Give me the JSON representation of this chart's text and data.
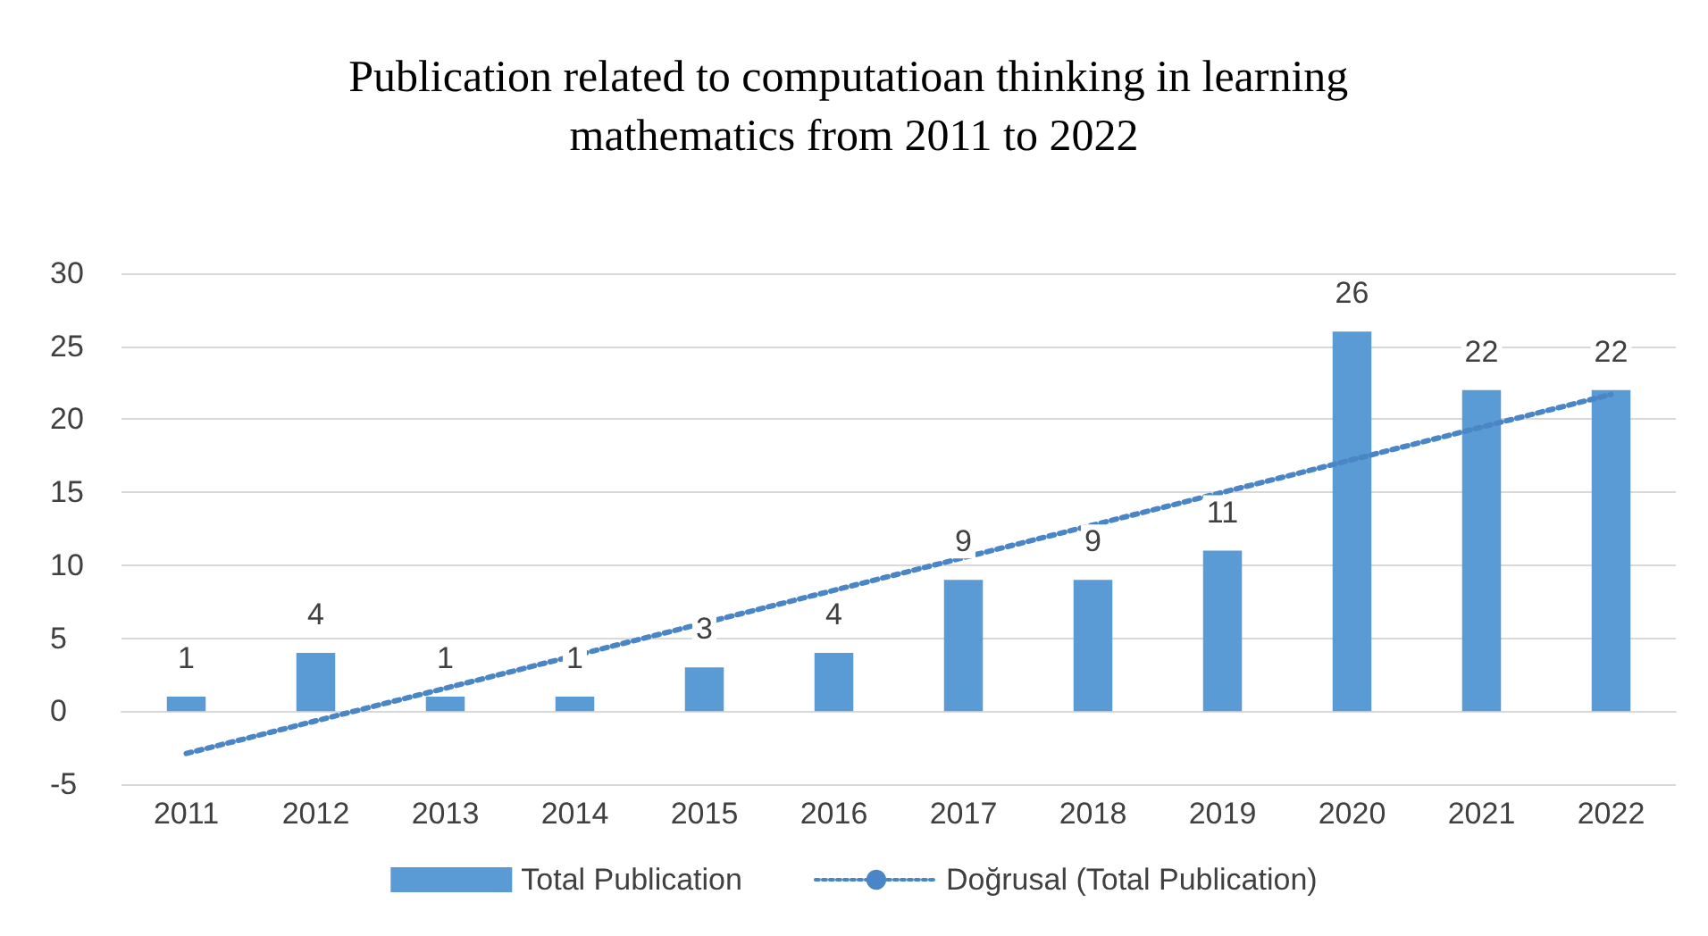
{
  "chart_data": {
    "type": "bar",
    "title": "Publication related to computatioan thinking in learning mathematics from 2011 to 2022",
    "categories": [
      "2011",
      "2012",
      "2013",
      "2014",
      "2015",
      "2016",
      "2017",
      "2018",
      "2019",
      "2020",
      "2021",
      "2022"
    ],
    "series": [
      {
        "name": "Total Publication",
        "color": "#5b9bd5",
        "values": [
          1,
          4,
          1,
          1,
          3,
          4,
          9,
          9,
          11,
          26,
          22,
          22
        ],
        "value_labels": [
          "1",
          "4",
          "1",
          "1",
          "3",
          "4",
          "9",
          "9",
          "11",
          "26",
          "22",
          "22"
        ]
      },
      {
        "name": "Doğrusal (Total Publication)",
        "type": "line",
        "color": "#4a86c5",
        "line_style": "dotted",
        "marker": "none",
        "values": [
          -2.9,
          null,
          null,
          null,
          null,
          null,
          null,
          null,
          null,
          null,
          null,
          21.7
        ]
      }
    ],
    "ylim": [
      -5,
      30
    ],
    "yticks": [
      -5,
      0,
      5,
      10,
      15,
      20,
      25,
      30
    ],
    "grid": "y",
    "legend": "bottom"
  }
}
